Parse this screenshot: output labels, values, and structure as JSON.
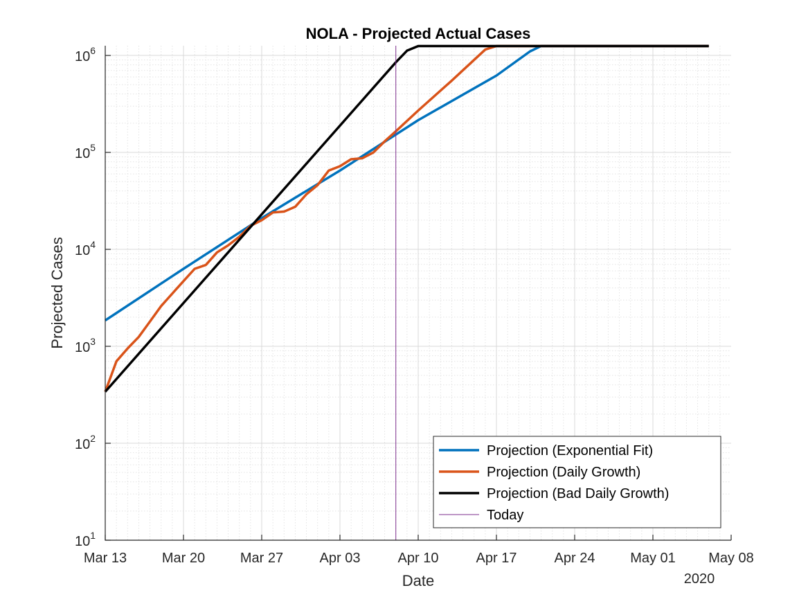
{
  "chart_data": {
    "type": "line",
    "title": "NOLA - Projected Actual Cases",
    "xlabel": "Date",
    "ylabel": "Projected Cases",
    "x_year_label": "2020",
    "yscale": "log",
    "ylim": [
      10,
      1260000
    ],
    "xlim": [
      "2020-03-13",
      "2020-05-08"
    ],
    "x_ticks": [
      "Mar 13",
      "Mar 20",
      "Mar 27",
      "Apr 03",
      "Apr 10",
      "Apr 17",
      "Apr 24",
      "May 01",
      "May 08"
    ],
    "y_ticks": [
      {
        "value": 10,
        "base": "10",
        "exp": "1"
      },
      {
        "value": 100,
        "base": "10",
        "exp": "2"
      },
      {
        "value": 1000,
        "base": "10",
        "exp": "3"
      },
      {
        "value": 10000,
        "base": "10",
        "exp": "4"
      },
      {
        "value": 100000,
        "base": "10",
        "exp": "5"
      },
      {
        "value": 1000000,
        "base": "10",
        "exp": "6"
      }
    ],
    "grid": true,
    "legend_position": "bottom-right",
    "today": "2020-04-08",
    "series": [
      {
        "name": "Projection (Exponential Fit)",
        "color": "#0072BD",
        "width": 3.5,
        "points": [
          [
            "2020-03-13",
            1850
          ],
          [
            "2020-03-20",
            6300
          ],
          [
            "2020-03-27",
            21000
          ],
          [
            "2020-04-03",
            65000
          ],
          [
            "2020-04-10",
            215000
          ],
          [
            "2020-04-17",
            620000
          ],
          [
            "2020-04-20",
            1100000
          ],
          [
            "2020-04-21",
            1250000
          ],
          [
            "2020-05-06",
            1250000
          ]
        ]
      },
      {
        "name": "Projection (Daily Growth)",
        "color": "#D95319",
        "width": 3.5,
        "points": [
          [
            "2020-03-13",
            340
          ],
          [
            "2020-03-14",
            700
          ],
          [
            "2020-03-15",
            950
          ],
          [
            "2020-03-16",
            1250
          ],
          [
            "2020-03-17",
            1800
          ],
          [
            "2020-03-18",
            2600
          ],
          [
            "2020-03-19",
            3500
          ],
          [
            "2020-03-20",
            4700
          ],
          [
            "2020-03-21",
            6300
          ],
          [
            "2020-03-22",
            6900
          ],
          [
            "2020-03-23",
            9300
          ],
          [
            "2020-03-24",
            11000
          ],
          [
            "2020-03-25",
            13500
          ],
          [
            "2020-03-26",
            17500
          ],
          [
            "2020-03-27",
            20000
          ],
          [
            "2020-03-28",
            24000
          ],
          [
            "2020-03-29",
            24500
          ],
          [
            "2020-03-30",
            27500
          ],
          [
            "2020-03-31",
            37000
          ],
          [
            "2020-04-01",
            46000
          ],
          [
            "2020-04-02",
            65000
          ],
          [
            "2020-04-03",
            72000
          ],
          [
            "2020-04-04",
            85000
          ],
          [
            "2020-04-05",
            87000
          ],
          [
            "2020-04-06",
            100000
          ],
          [
            "2020-04-07",
            130000
          ],
          [
            "2020-04-08",
            165000
          ],
          [
            "2020-04-10",
            270000
          ],
          [
            "2020-04-13",
            550000
          ],
          [
            "2020-04-16",
            1150000
          ],
          [
            "2020-04-17",
            1250000
          ],
          [
            "2020-05-06",
            1250000
          ]
        ]
      },
      {
        "name": "Projection (Bad Daily Growth)",
        "color": "#000000",
        "width": 3.5,
        "points": [
          [
            "2020-03-13",
            340
          ],
          [
            "2020-04-08",
            850000
          ],
          [
            "2020-04-09",
            1120000
          ],
          [
            "2020-04-10",
            1250000
          ],
          [
            "2020-05-06",
            1250000
          ]
        ]
      },
      {
        "name": "Today",
        "color": "#7E2F8E",
        "width": 1,
        "vertical_at": "2020-04-08"
      }
    ]
  }
}
